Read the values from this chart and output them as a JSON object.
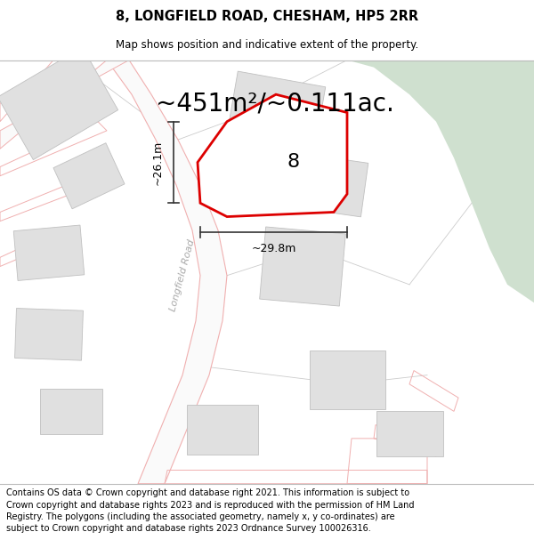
{
  "title": "8, LONGFIELD ROAD, CHESHAM, HP5 2RR",
  "subtitle": "Map shows position and indicative extent of the property.",
  "area_label": "~451m²/~0.111ac.",
  "number_label": "8",
  "dim_width": "~29.8m",
  "dim_height": "~26.1m",
  "road_label": "Longfield Road",
  "footer": "Contains OS data © Crown copyright and database right 2021. This information is subject to Crown copyright and database rights 2023 and is reproduced with the permission of HM Land Registry. The polygons (including the associated geometry, namely x, y co-ordinates) are subject to Crown copyright and database rights 2023 Ordnance Survey 100026316.",
  "bg_color": "#ffffff",
  "map_bg": "#ffffff",
  "green_area_color": "#cfe0cf",
  "road_line_color": "#f0b0b0",
  "plot_fill": "#ffffff",
  "plot_edge_color": "#dd0000",
  "plot_edge_width": 2.0,
  "building_fill": "#e0e0e0",
  "building_edge": "#c0c0c0",
  "parcel_line_color": "#cccccc",
  "title_fontsize": 10.5,
  "subtitle_fontsize": 8.5,
  "footer_fontsize": 7.0,
  "area_fontsize": 20,
  "number_fontsize": 16,
  "dim_fontsize": 9,
  "road_label_fontsize": 8,
  "road_label_color": "#aaaaaa"
}
